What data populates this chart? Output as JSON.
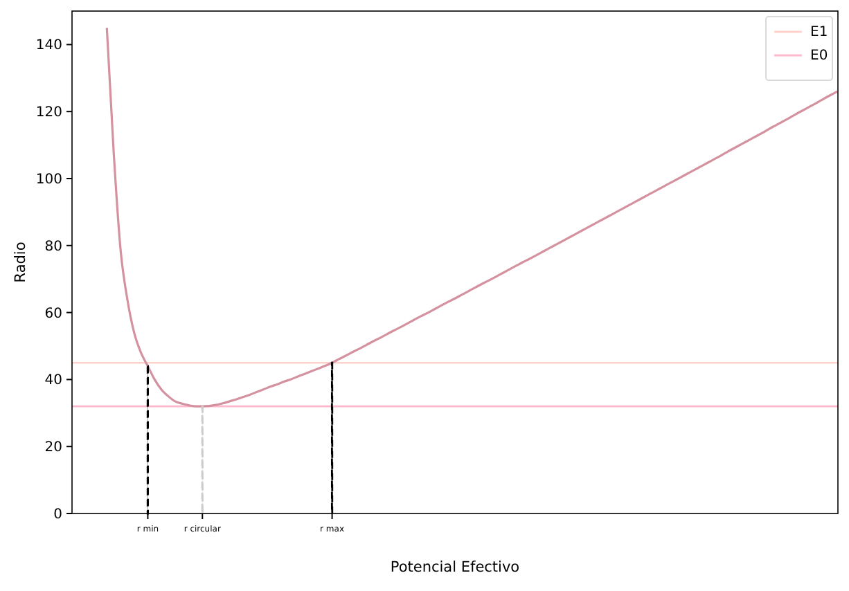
{
  "chart_data": {
    "type": "line",
    "xlabel": "Potencial Efectivo",
    "ylabel": "Radio",
    "categories": [
      null,
      null,
      null,
      null,
      null,
      null,
      null,
      null,
      null,
      null,
      null,
      "r min",
      null,
      null,
      null,
      null,
      null,
      null,
      null,
      "r circular",
      null,
      null,
      null,
      null,
      null,
      null,
      null,
      null,
      null,
      null,
      null,
      null,
      null,
      null,
      null,
      null,
      null,
      null,
      "r max",
      null,
      null,
      null,
      null,
      null,
      null,
      null,
      null,
      null,
      null,
      null,
      null,
      null,
      null,
      null,
      null,
      null,
      null,
      null,
      null,
      null,
      null,
      null,
      null,
      null,
      null,
      null,
      null,
      null,
      null,
      null,
      null,
      null,
      null,
      null,
      null,
      null,
      null,
      null,
      null,
      null,
      null,
      null,
      null,
      null,
      null,
      null,
      null,
      null,
      null,
      null,
      null,
      null,
      null,
      null,
      null,
      null,
      null,
      null,
      null,
      null,
      null,
      null,
      null,
      null,
      null,
      null,
      null,
      null,
      null,
      null,
      null,
      null,
      null
    ],
    "ylim": [
      0,
      150
    ],
    "yticks": [
      0,
      20,
      40,
      60,
      80,
      100,
      120,
      140
    ],
    "grid": false,
    "legend": "top right",
    "ref_lines": [
      {
        "axis": "y",
        "value": 45,
        "label": "E1",
        "color": "#ffd3cc"
      },
      {
        "axis": "y",
        "value": 32,
        "label": "E0",
        "color": "#ffb8cc"
      }
    ],
    "series": [
      {
        "color": "#d4919f",
        "line_style": "solid",
        "marker": "none",
        "values": [
          null,
          null,
          null,
          null,
          null,
          145,
          108,
          79,
          64,
          54,
          48,
          44,
          40,
          37,
          35,
          33.5,
          32.8,
          32.3,
          32,
          32,
          32.1,
          32.4,
          32.9,
          33.5,
          34.1,
          34.8,
          35.5,
          36.3,
          37.1,
          37.9,
          38.6,
          39.4,
          40.1,
          40.9,
          41.7,
          42.5,
          43.3,
          44.1,
          45,
          46.1,
          47.1,
          48.2,
          49.2,
          50.3,
          51.4,
          52.4,
          53.5,
          54.6,
          55.6,
          56.7,
          57.8,
          58.9,
          59.9,
          61,
          62.1,
          63.2,
          64.2,
          65.3,
          66.4,
          67.5,
          68.6,
          69.6,
          70.7,
          71.8,
          72.9,
          74,
          75.1,
          76.1,
          77.2,
          78.3,
          79.4,
          80.5,
          81.6,
          82.7,
          83.8,
          84.9,
          86,
          87.1,
          88.2,
          89.3,
          90.4,
          91.5,
          92.6,
          93.7,
          94.8,
          95.9,
          97,
          98.1,
          99.2,
          100.3,
          101.4,
          102.5,
          103.6,
          104.7,
          105.8,
          106.9,
          108.1,
          109.2,
          110.3,
          111.4,
          112.5,
          113.6,
          114.8,
          115.9,
          117,
          118.1,
          119.3,
          120.4,
          121.5,
          122.6,
          123.8,
          124.9,
          126
        ]
      },
      {
        "type": "bar",
        "color": "#000000",
        "line_style": "dashed",
        "values": [
          null,
          null,
          null,
          null,
          null,
          null,
          null,
          null,
          null,
          null,
          null,
          44,
          null,
          null,
          null,
          null,
          null,
          null,
          null,
          null,
          null,
          null,
          null,
          null,
          null,
          null,
          null,
          null,
          null,
          null,
          null,
          null,
          null,
          null,
          null,
          null,
          null,
          null,
          45,
          null,
          null,
          null,
          null,
          null,
          null,
          null,
          null,
          null,
          null,
          null,
          null,
          null,
          null,
          null,
          null,
          null,
          null,
          null,
          null,
          null,
          null,
          null,
          null,
          null,
          null,
          null,
          null,
          null,
          null,
          null,
          null,
          null,
          null,
          null,
          null,
          null,
          null,
          null,
          null,
          null,
          null,
          null,
          null,
          null,
          null,
          null,
          null,
          null,
          null,
          null,
          null,
          null,
          null,
          null,
          null,
          null,
          null,
          null,
          null,
          null,
          null,
          null,
          null,
          null,
          null,
          null,
          null,
          null,
          null,
          null,
          null,
          null,
          null
        ]
      },
      {
        "type": "bar",
        "color": "#cccccc",
        "line_style": "dashed",
        "values": [
          null,
          null,
          null,
          null,
          null,
          null,
          null,
          null,
          null,
          null,
          null,
          null,
          null,
          null,
          null,
          null,
          null,
          null,
          null,
          32,
          null,
          null,
          null,
          null,
          null,
          null,
          null,
          null,
          null,
          null,
          null,
          null,
          null,
          null,
          null,
          null,
          null,
          null,
          null,
          null,
          null,
          null,
          null,
          null,
          null,
          null,
          null,
          null,
          null,
          null,
          null,
          null,
          null,
          null,
          null,
          null,
          null,
          null,
          null,
          null,
          null,
          null,
          null,
          null,
          null,
          null,
          null,
          null,
          null,
          null,
          null,
          null,
          null,
          null,
          null,
          null,
          null,
          null,
          null,
          null,
          null,
          null,
          null,
          null,
          null,
          null,
          null,
          null,
          null,
          null,
          null,
          null,
          null,
          null,
          null,
          null,
          null,
          null,
          null,
          null,
          null,
          null,
          null,
          null,
          null,
          null,
          null,
          null,
          null,
          null,
          null,
          null,
          null
        ]
      }
    ]
  }
}
